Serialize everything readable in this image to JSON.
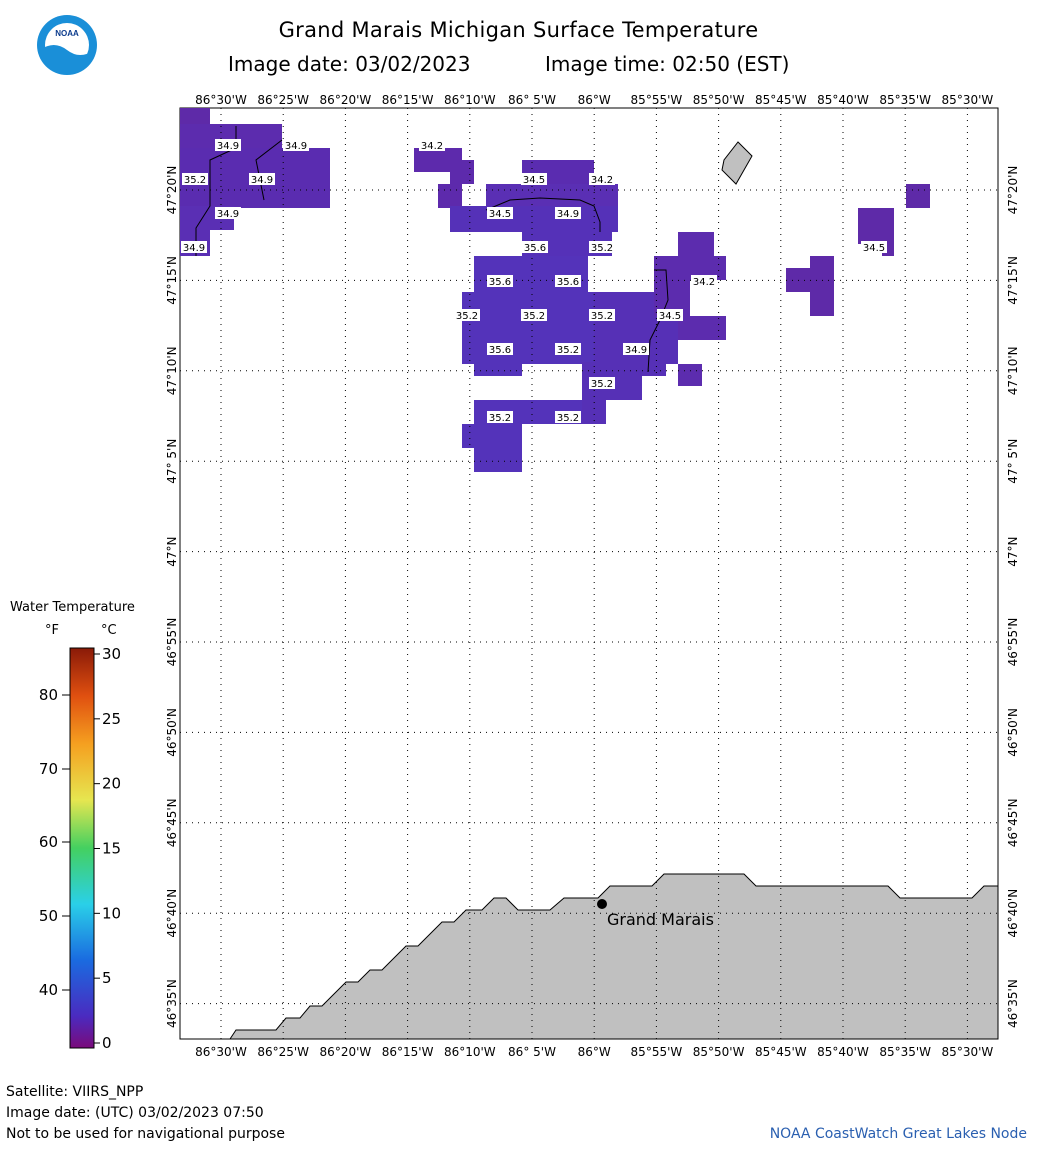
{
  "header": {
    "title": "Grand Marais Michigan Surface Temperature",
    "image_date": "Image date: 03/02/2023",
    "image_time": "Image time: 02:50 (EST)",
    "logo_text": "NOAA"
  },
  "map": {
    "lon_labels": [
      "86°30'W",
      "86°25'W",
      "86°20'W",
      "86°15'W",
      "86°10'W",
      "86° 5'W",
      "86°W",
      "85°55'W",
      "85°50'W",
      "85°45'W",
      "85°40'W",
      "85°35'W",
      "85°30'W"
    ],
    "lat_labels": [
      "47°20'N",
      "47°15'N",
      "47°10'N",
      "47° 5'N",
      "47°N",
      "46°55'N",
      "46°50'N",
      "46°45'N",
      "46°40'N",
      "46°35'N"
    ],
    "place": "Grand Marais",
    "land_color": "#c0c0c0",
    "water_color": "#5a2fb4",
    "temperature_labels_f": [
      "34.9",
      "34.9",
      "35.2",
      "34.9",
      "34.9",
      "34.9",
      "34.2",
      "34.5",
      "34.2",
      "34.5",
      "34.9",
      "35.6",
      "35.2",
      "35.6",
      "35.6",
      "34.2",
      "35.2",
      "35.2",
      "35.2",
      "34.5",
      "35.6",
      "35.2",
      "34.9",
      "35.2",
      "35.2",
      "35.2",
      "34.5"
    ]
  },
  "legend": {
    "title": "Water Temperature",
    "unit_f": "°F",
    "unit_c": "°C",
    "f_ticks": [
      "80",
      "70",
      "60",
      "50",
      "40"
    ],
    "c_ticks": [
      "30",
      "25",
      "20",
      "15",
      "10",
      "5",
      "0"
    ],
    "colors": [
      "#7a0a7a",
      "#4a2bc0",
      "#1a6be0",
      "#2ad0e8",
      "#44d060",
      "#e6e650",
      "#f5a020",
      "#e05010",
      "#8a1a08"
    ]
  },
  "footer": {
    "satellite": "Satellite: VIIRS_NPP",
    "utc_date": "Image date: (UTC) 03/02/2023  07:50",
    "disclaimer": "Not to be used for navigational purpose",
    "credit": "NOAA CoastWatch Great Lakes Node"
  }
}
